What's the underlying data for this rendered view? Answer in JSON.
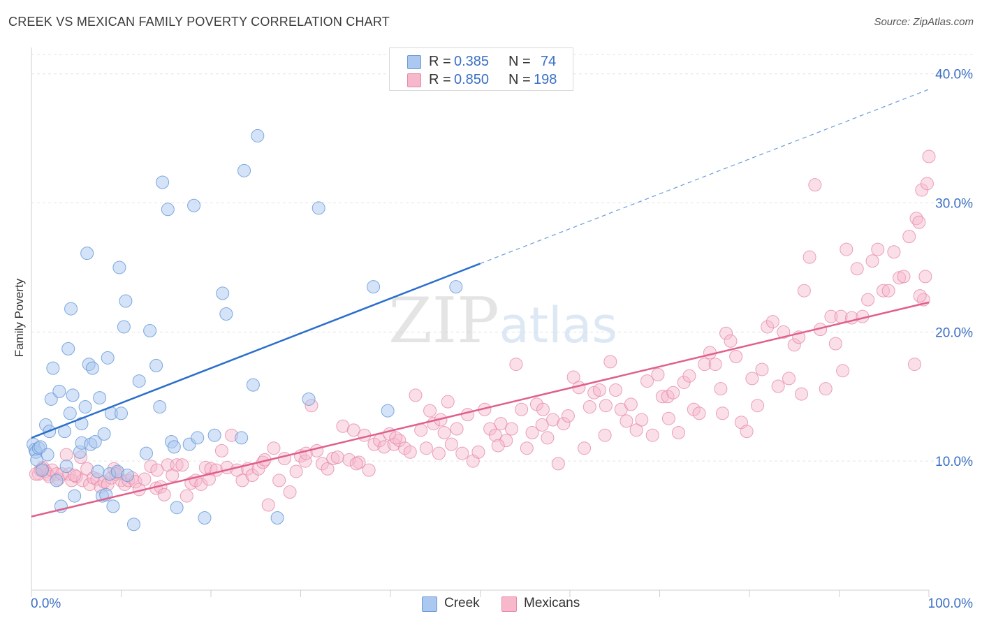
{
  "header": {
    "title": "CREEK VS MEXICAN FAMILY POVERTY CORRELATION CHART",
    "source": "Source: ZipAtlas.com"
  },
  "legend": {
    "creek": {
      "r_label": "R =",
      "r_value": "0.385",
      "n_label": "N =",
      "n_value": "74",
      "name": "Creek"
    },
    "mexicans": {
      "r_label": "R =",
      "r_value": "0.850",
      "n_label": "N =",
      "n_value": "198",
      "name": "Mexicans"
    }
  },
  "colors": {
    "creek_fill": "#aac8f0",
    "creek_stroke": "#6a9ad8",
    "creek_line": "#2a6fcc",
    "mex_fill": "#f7b8cb",
    "mex_stroke": "#e58aa6",
    "mex_line": "#e0608b",
    "grid": "#e3e3e3",
    "axis_text": "#3a6fc4"
  },
  "watermark": "ZIPatlas",
  "chart_data": {
    "type": "scatter",
    "title": "CREEK VS MEXICAN FAMILY POVERTY CORRELATION CHART",
    "xlabel": "",
    "ylabel": "Family Poverty",
    "xlim": [
      0,
      100
    ],
    "ylim": [
      0,
      41.5
    ],
    "x_tick_labels": [
      "0.0%",
      "100.0%"
    ],
    "y_ticks": [
      10,
      20,
      30,
      40
    ],
    "y_tick_labels": [
      "10.0%",
      "20.0%",
      "30.0%",
      "40.0%"
    ],
    "grid": true,
    "legend_position": "top-center",
    "series": [
      {
        "name": "Creek",
        "trend": {
          "x0": 0,
          "y0": 11.8,
          "x1": 50,
          "y1": 25.3,
          "dashed_to": {
            "x": 100,
            "y": 38.8
          }
        },
        "points": [
          [
            0.2,
            11.3
          ],
          [
            0.4,
            10.9
          ],
          [
            0.5,
            10.7
          ],
          [
            0.6,
            10.1
          ],
          [
            0.8,
            11.0
          ],
          [
            1.0,
            11.1
          ],
          [
            1.2,
            9.3
          ],
          [
            1.6,
            12.8
          ],
          [
            1.8,
            10.5
          ],
          [
            2.0,
            12.3
          ],
          [
            2.2,
            14.8
          ],
          [
            2.4,
            17.2
          ],
          [
            2.8,
            8.5
          ],
          [
            3.1,
            15.4
          ],
          [
            3.3,
            6.5
          ],
          [
            3.7,
            12.3
          ],
          [
            3.9,
            9.6
          ],
          [
            4.1,
            18.7
          ],
          [
            4.3,
            13.7
          ],
          [
            4.4,
            21.8
          ],
          [
            4.6,
            15.1
          ],
          [
            4.8,
            7.3
          ],
          [
            5.4,
            10.7
          ],
          [
            5.6,
            12.9
          ],
          [
            5.6,
            11.4
          ],
          [
            6.0,
            14.2
          ],
          [
            6.2,
            26.1
          ],
          [
            6.4,
            17.5
          ],
          [
            6.6,
            11.3
          ],
          [
            6.8,
            17.2
          ],
          [
            7.1,
            11.5
          ],
          [
            7.4,
            9.2
          ],
          [
            7.6,
            14.9
          ],
          [
            7.9,
            7.3
          ],
          [
            8.1,
            12.1
          ],
          [
            8.3,
            7.4
          ],
          [
            8.5,
            18.0
          ],
          [
            8.7,
            9.0
          ],
          [
            8.9,
            13.7
          ],
          [
            9.1,
            6.5
          ],
          [
            9.6,
            9.2
          ],
          [
            9.8,
            25.0
          ],
          [
            10.0,
            13.7
          ],
          [
            10.3,
            20.4
          ],
          [
            10.5,
            22.4
          ],
          [
            10.7,
            8.9
          ],
          [
            11.4,
            5.1
          ],
          [
            12.0,
            16.2
          ],
          [
            12.8,
            10.6
          ],
          [
            13.2,
            20.1
          ],
          [
            13.9,
            17.4
          ],
          [
            14.3,
            14.2
          ],
          [
            14.6,
            31.6
          ],
          [
            15.2,
            29.5
          ],
          [
            15.6,
            11.5
          ],
          [
            15.9,
            11.1
          ],
          [
            16.2,
            6.4
          ],
          [
            17.6,
            11.3
          ],
          [
            18.1,
            29.8
          ],
          [
            18.5,
            11.8
          ],
          [
            19.3,
            5.6
          ],
          [
            20.4,
            12.0
          ],
          [
            21.3,
            23.0
          ],
          [
            21.7,
            21.4
          ],
          [
            23.4,
            11.8
          ],
          [
            23.7,
            32.5
          ],
          [
            24.7,
            15.9
          ],
          [
            25.2,
            35.2
          ],
          [
            27.4,
            5.6
          ],
          [
            30.9,
            14.8
          ],
          [
            32.0,
            29.6
          ],
          [
            38.1,
            23.5
          ],
          [
            39.7,
            13.9
          ],
          [
            47.3,
            23.5
          ]
        ]
      },
      {
        "name": "Mexicans",
        "trend": {
          "x0": 0,
          "y0": 5.7,
          "x1": 100,
          "y1": 22.3
        },
        "points": [
          [
            0.8,
            9.0
          ],
          [
            1.0,
            9.3
          ],
          [
            1.3,
            9.5
          ],
          [
            1.6,
            9.2
          ],
          [
            1.8,
            9.0
          ],
          [
            2.0,
            8.8
          ],
          [
            2.3,
            9.3
          ],
          [
            2.8,
            9.0
          ],
          [
            3.0,
            8.6
          ],
          [
            3.4,
            9.0
          ],
          [
            3.9,
            10.5
          ],
          [
            4.2,
            9.0
          ],
          [
            4.5,
            8.5
          ],
          [
            5.0,
            8.8
          ],
          [
            5.5,
            10.3
          ],
          [
            5.7,
            8.5
          ],
          [
            6.2,
            9.4
          ],
          [
            6.5,
            8.2
          ],
          [
            6.9,
            8.7
          ],
          [
            7.3,
            8.6
          ],
          [
            7.7,
            8.0
          ],
          [
            8.1,
            8.4
          ],
          [
            8.5,
            8.2
          ],
          [
            8.9,
            8.7
          ],
          [
            9.2,
            9.4
          ],
          [
            9.6,
            9.1
          ],
          [
            10.0,
            8.5
          ],
          [
            10.4,
            8.2
          ],
          [
            10.8,
            8.5
          ],
          [
            11.2,
            8.7
          ],
          [
            11.6,
            8.4
          ],
          [
            12.0,
            7.8
          ],
          [
            12.6,
            8.6
          ],
          [
            13.3,
            9.6
          ],
          [
            13.9,
            7.9
          ],
          [
            14.4,
            8.0
          ],
          [
            14.8,
            7.4
          ],
          [
            15.2,
            9.7
          ],
          [
            15.7,
            8.9
          ],
          [
            16.2,
            9.7
          ],
          [
            16.8,
            9.7
          ],
          [
            17.3,
            7.3
          ],
          [
            17.8,
            8.3
          ],
          [
            18.3,
            8.5
          ],
          [
            18.9,
            8.2
          ],
          [
            19.4,
            9.5
          ],
          [
            20.0,
            9.4
          ],
          [
            20.6,
            9.3
          ],
          [
            21.2,
            10.8
          ],
          [
            21.8,
            9.5
          ],
          [
            22.3,
            12.0
          ],
          [
            22.9,
            9.3
          ],
          [
            23.5,
            8.5
          ],
          [
            24.1,
            9.4
          ],
          [
            24.6,
            8.9
          ],
          [
            25.3,
            9.4
          ],
          [
            25.8,
            9.9
          ],
          [
            26.4,
            6.6
          ],
          [
            27.0,
            11.0
          ],
          [
            27.6,
            8.5
          ],
          [
            28.2,
            10.2
          ],
          [
            28.8,
            7.6
          ],
          [
            29.5,
            9.2
          ],
          [
            30.0,
            10.4
          ],
          [
            30.5,
            10.0
          ],
          [
            31.2,
            14.3
          ],
          [
            31.8,
            10.8
          ],
          [
            32.4,
            9.8
          ],
          [
            33.0,
            9.4
          ],
          [
            33.6,
            10.2
          ],
          [
            34.1,
            10.3
          ],
          [
            34.7,
            12.7
          ],
          [
            35.4,
            10.1
          ],
          [
            35.9,
            12.4
          ],
          [
            36.5,
            9.9
          ],
          [
            37.1,
            12.0
          ],
          [
            37.6,
            9.3
          ],
          [
            38.2,
            11.3
          ],
          [
            38.8,
            11.6
          ],
          [
            39.3,
            11.1
          ],
          [
            39.9,
            12.1
          ],
          [
            40.4,
            11.3
          ],
          [
            41.0,
            11.6
          ],
          [
            41.6,
            11.0
          ],
          [
            42.2,
            10.7
          ],
          [
            42.8,
            15.1
          ],
          [
            43.4,
            12.4
          ],
          [
            44.0,
            11.0
          ],
          [
            44.4,
            13.9
          ],
          [
            44.8,
            12.9
          ],
          [
            45.4,
            10.6
          ],
          [
            46.0,
            12.2
          ],
          [
            46.4,
            14.6
          ],
          [
            46.8,
            11.3
          ],
          [
            47.4,
            12.5
          ],
          [
            48.0,
            10.6
          ],
          [
            48.6,
            13.6
          ],
          [
            49.2,
            10.0
          ],
          [
            49.8,
            10.7
          ],
          [
            50.5,
            14.0
          ],
          [
            51.1,
            12.5
          ],
          [
            51.7,
            12.0
          ],
          [
            52.3,
            12.9
          ],
          [
            52.9,
            11.6
          ],
          [
            53.5,
            12.5
          ],
          [
            54.0,
            17.5
          ],
          [
            54.6,
            14.0
          ],
          [
            55.2,
            11.0
          ],
          [
            55.8,
            12.2
          ],
          [
            56.3,
            14.4
          ],
          [
            56.9,
            12.8
          ],
          [
            57.5,
            11.8
          ],
          [
            58.1,
            13.2
          ],
          [
            58.7,
            9.8
          ],
          [
            59.3,
            12.9
          ],
          [
            59.8,
            13.5
          ],
          [
            60.4,
            16.5
          ],
          [
            61.0,
            15.7
          ],
          [
            61.6,
            11.0
          ],
          [
            62.2,
            14.2
          ],
          [
            62.7,
            15.3
          ],
          [
            63.3,
            15.5
          ],
          [
            63.9,
            12.0
          ],
          [
            64.5,
            17.7
          ],
          [
            65.1,
            15.5
          ],
          [
            65.7,
            14.0
          ],
          [
            66.3,
            13.1
          ],
          [
            66.8,
            14.4
          ],
          [
            67.4,
            12.4
          ],
          [
            68.0,
            13.2
          ],
          [
            68.6,
            16.2
          ],
          [
            69.2,
            12.0
          ],
          [
            69.8,
            16.7
          ],
          [
            70.3,
            15.0
          ],
          [
            70.9,
            15.0
          ],
          [
            71.5,
            15.3
          ],
          [
            72.1,
            12.2
          ],
          [
            72.7,
            16.1
          ],
          [
            73.3,
            16.6
          ],
          [
            73.8,
            14.0
          ],
          [
            74.4,
            13.7
          ],
          [
            75.0,
            17.5
          ],
          [
            75.6,
            18.4
          ],
          [
            76.2,
            17.5
          ],
          [
            76.8,
            15.6
          ],
          [
            77.4,
            19.9
          ],
          [
            77.9,
            19.3
          ],
          [
            78.5,
            18.1
          ],
          [
            79.1,
            13.0
          ],
          [
            79.7,
            12.3
          ],
          [
            80.3,
            16.4
          ],
          [
            80.9,
            14.3
          ],
          [
            81.4,
            17.1
          ],
          [
            82.0,
            20.4
          ],
          [
            82.6,
            20.8
          ],
          [
            83.2,
            15.8
          ],
          [
            83.8,
            20.0
          ],
          [
            84.4,
            16.4
          ],
          [
            85.0,
            19.0
          ],
          [
            85.5,
            19.6
          ],
          [
            86.1,
            23.2
          ],
          [
            86.7,
            25.8
          ],
          [
            87.3,
            31.4
          ],
          [
            87.9,
            20.2
          ],
          [
            88.5,
            15.6
          ],
          [
            89.1,
            21.2
          ],
          [
            89.6,
            19.1
          ],
          [
            90.2,
            21.2
          ],
          [
            90.8,
            26.4
          ],
          [
            91.4,
            21.1
          ],
          [
            92.0,
            24.9
          ],
          [
            92.6,
            21.2
          ],
          [
            93.2,
            22.5
          ],
          [
            93.7,
            25.5
          ],
          [
            94.3,
            26.4
          ],
          [
            94.9,
            23.2
          ],
          [
            95.5,
            23.2
          ],
          [
            96.1,
            26.2
          ],
          [
            96.7,
            24.2
          ],
          [
            97.2,
            24.3
          ],
          [
            97.8,
            27.4
          ],
          [
            98.4,
            17.5
          ],
          [
            98.6,
            28.8
          ],
          [
            98.9,
            28.5
          ],
          [
            99.2,
            31.0
          ],
          [
            99.4,
            22.5
          ],
          [
            99.6,
            24.3
          ],
          [
            99.8,
            31.5
          ],
          [
            100.0,
            33.6
          ],
          [
            99.0,
            22.8
          ],
          [
            90.4,
            17.0
          ],
          [
            85.8,
            15.2
          ],
          [
            77.0,
            13.7
          ],
          [
            71.0,
            13.3
          ],
          [
            64.0,
            14.3
          ],
          [
            57.0,
            14.0
          ],
          [
            52.0,
            11.2
          ],
          [
            45.6,
            13.2
          ],
          [
            40.6,
            11.8
          ],
          [
            36.2,
            9.8
          ],
          [
            30.6,
            10.6
          ],
          [
            26.0,
            10.1
          ],
          [
            19.8,
            8.6
          ],
          [
            14.0,
            9.3
          ],
          [
            9.4,
            9.0
          ],
          [
            4.8,
            8.9
          ],
          [
            1.2,
            9.4
          ],
          [
            0.5,
            9.0
          ]
        ]
      }
    ]
  }
}
